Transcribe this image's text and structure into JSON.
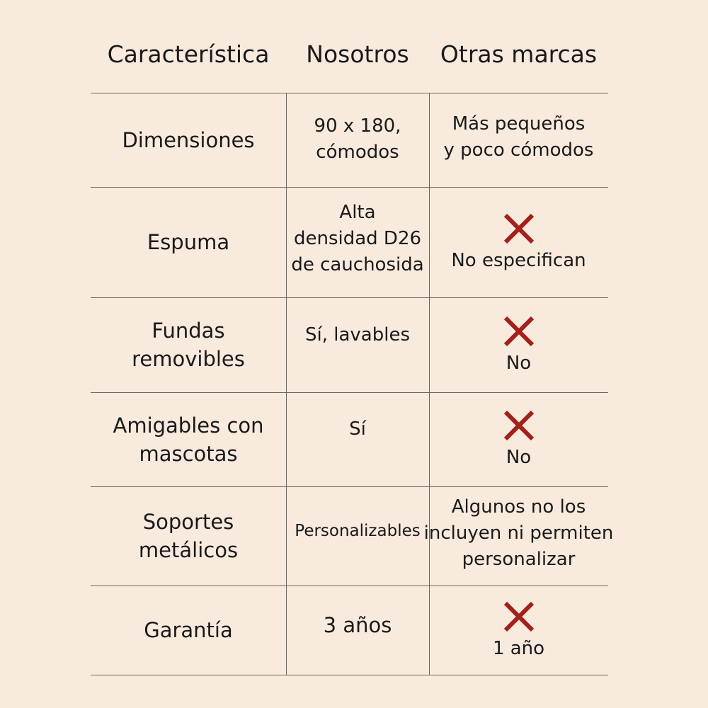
{
  "chart_data": {
    "type": "table",
    "columns": [
      "Característica",
      "Nosotros",
      "Otras marcas"
    ],
    "rows": [
      {
        "feature": [
          "Dimensiones"
        ],
        "ours": [
          "90 x 180,",
          "cómodos"
        ],
        "others_mark": "none",
        "others": [
          "Más pequeños",
          "y poco cómodos"
        ]
      },
      {
        "feature": [
          "Espuma"
        ],
        "ours": [
          "Alta",
          "densidad D26",
          "de cauchosida"
        ],
        "others_mark": "cross-icon",
        "others": [
          "No especifican"
        ]
      },
      {
        "feature": [
          "Fundas",
          "removibles"
        ],
        "ours": [
          "Sí, lavables"
        ],
        "others_mark": "cross-icon",
        "others": [
          "No"
        ]
      },
      {
        "feature": [
          "Amigables con",
          "mascotas"
        ],
        "ours": [
          "Sí"
        ],
        "others_mark": "cross-icon",
        "others": [
          "No"
        ]
      },
      {
        "feature": [
          "Soportes",
          "metálicos"
        ],
        "ours": [
          "Personalizables"
        ],
        "others_mark": "none",
        "others": [
          "Algunos no los",
          "incluyen ni permiten",
          "personalizar"
        ]
      },
      {
        "feature": [
          "Garantía"
        ],
        "ours": [
          "3 años"
        ],
        "others_mark": "cross-icon",
        "others": [
          "1 año"
        ]
      }
    ]
  },
  "colors": {
    "background": "#f8eadd",
    "text": "#1a1a1a",
    "cross": "#a3201b",
    "grid": "#6a6560"
  }
}
